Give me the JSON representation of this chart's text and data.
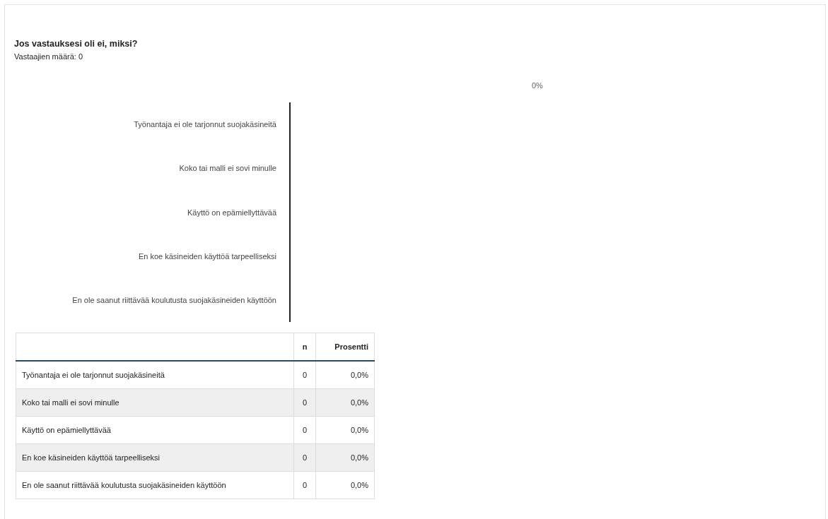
{
  "chart_data": {
    "type": "other",
    "title": "Jos vastauksesi oli ei, miksi?",
    "subtitle": "Vastaajien määrä: 0",
    "categories": [
      "Työnantaja ei ole tarjonnut suojakäsineitä",
      "Koko tai malli ei sovi minulle",
      "Käyttö on epämiellyttävää",
      "En koe käsineiden käyttöä tarpeelliseksi",
      "En ole saanut riittävää koulutusta suojakäsineiden käyttöön"
    ],
    "series": [
      {
        "values": [
          0,
          0,
          0,
          0,
          0
        ],
        "value_labels": [
          "0",
          "0",
          "0",
          "0",
          "0"
        ]
      },
      {
        "values": [
          0,
          0,
          0,
          0,
          0
        ],
        "value_labels": [
          "0,0%",
          "0,0%",
          "0,0%",
          "0,0%",
          "0,0%"
        ]
      }
    ],
    "annotations": [
      "0%",
      "n",
      "Prosentti"
    ]
  }
}
